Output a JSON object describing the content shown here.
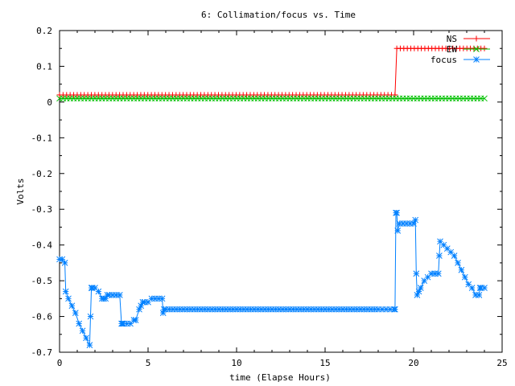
{
  "chart_data": {
    "type": "line",
    "title": "6: Collimation/focus vs. Time",
    "xlabel": "time (Elapse Hours)",
    "ylabel": "Volts",
    "xlim": [
      0,
      25
    ],
    "ylim": [
      -0.7,
      0.2
    ],
    "xticks": [
      0,
      5,
      10,
      15,
      20,
      25
    ],
    "xtick_labels": [
      "0",
      "5",
      "10",
      "15",
      "20",
      "25"
    ],
    "yticks": [
      0.2,
      0.1,
      0,
      -0.1,
      -0.2,
      -0.3,
      -0.4,
      -0.5,
      -0.6,
      -0.7
    ],
    "ytick_labels": [
      "0.2",
      "0.1",
      "0",
      "-0.1",
      "-0.2",
      "-0.3",
      "-0.4",
      "-0.5",
      "-0.6",
      "-0.7"
    ],
    "grid": false,
    "legend": "top-right",
    "series": [
      {
        "name": "NS",
        "color": "#ff0000",
        "marker": "plus",
        "x": [
          0,
          18.95,
          18.95,
          19.05,
          24.0
        ],
        "y": [
          0.02,
          0.02,
          0.02,
          0.15,
          0.15
        ]
      },
      {
        "name": "EW",
        "color": "#00c000",
        "marker": "cross",
        "x": [
          0,
          24.0
        ],
        "y": [
          0.01,
          0.01
        ]
      },
      {
        "name": "focus",
        "color": "#0080ff",
        "marker": "star",
        "x": [
          0,
          0.15,
          0.3,
          0.35,
          0.5,
          0.7,
          0.9,
          1.1,
          1.3,
          1.5,
          1.7,
          1.75,
          1.8,
          1.85,
          2.0,
          2.2,
          2.4,
          2.5,
          2.6,
          2.7,
          2.8,
          3.0,
          3.2,
          3.4,
          3.5,
          3.55,
          3.6,
          4.0,
          4.2,
          4.3,
          4.5,
          4.6,
          4.7,
          4.8,
          5.0,
          5.2,
          5.4,
          5.6,
          5.8,
          5.85,
          5.9,
          6.0,
          7.0,
          8.0,
          9.0,
          10.0,
          11.0,
          12.0,
          13.0,
          14.0,
          15.0,
          16.0,
          17.0,
          18.0,
          18.9,
          18.95,
          19.0,
          19.05,
          19.1,
          19.2,
          19.4,
          19.6,
          19.8,
          20.0,
          20.1,
          20.15,
          20.2,
          20.3,
          20.4,
          20.6,
          20.8,
          21.0,
          21.2,
          21.4,
          21.45,
          21.5,
          21.7,
          21.9,
          22.1,
          22.3,
          22.5,
          22.7,
          22.9,
          23.1,
          23.3,
          23.5,
          23.7,
          23.75,
          23.8,
          24.0
        ],
        "y": [
          -0.44,
          -0.44,
          -0.45,
          -0.53,
          -0.55,
          -0.57,
          -0.59,
          -0.62,
          -0.64,
          -0.66,
          -0.68,
          -0.6,
          -0.52,
          -0.52,
          -0.52,
          -0.53,
          -0.55,
          -0.55,
          -0.55,
          -0.54,
          -0.54,
          -0.54,
          -0.54,
          -0.54,
          -0.62,
          -0.62,
          -0.62,
          -0.62,
          -0.61,
          -0.61,
          -0.58,
          -0.57,
          -0.56,
          -0.56,
          -0.56,
          -0.55,
          -0.55,
          -0.55,
          -0.55,
          -0.59,
          -0.58,
          -0.58,
          -0.58,
          -0.58,
          -0.58,
          -0.58,
          -0.58,
          -0.58,
          -0.58,
          -0.58,
          -0.58,
          -0.58,
          -0.58,
          -0.58,
          -0.58,
          -0.58,
          -0.31,
          -0.31,
          -0.36,
          -0.34,
          -0.34,
          -0.34,
          -0.34,
          -0.34,
          -0.33,
          -0.48,
          -0.54,
          -0.53,
          -0.52,
          -0.5,
          -0.49,
          -0.48,
          -0.48,
          -0.48,
          -0.43,
          -0.39,
          -0.4,
          -0.41,
          -0.42,
          -0.43,
          -0.45,
          -0.47,
          -0.49,
          -0.51,
          -0.52,
          -0.54,
          -0.54,
          -0.52,
          -0.52,
          -0.52
        ]
      }
    ]
  }
}
